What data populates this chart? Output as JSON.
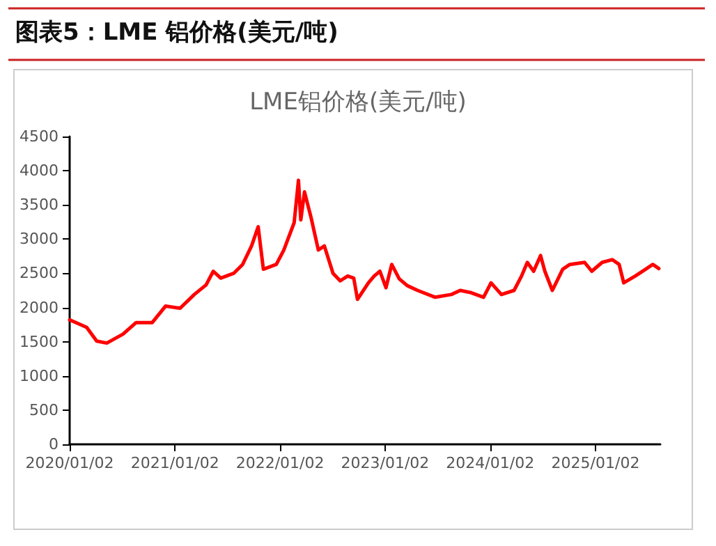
{
  "chart_data": {
    "type": "line",
    "title": "图表5：LME 铝价格(美元/吨)",
    "subtitle": "LME铝价格(美元/吨)",
    "x": [
      "2020-01-02",
      "2020-03-01",
      "2020-04-05",
      "2020-05-10",
      "2020-07-05",
      "2020-08-20",
      "2020-10-15",
      "2020-11-30",
      "2021-01-20",
      "2021-03-10",
      "2021-04-20",
      "2021-05-15",
      "2021-06-10",
      "2021-07-25",
      "2021-08-25",
      "2021-09-25",
      "2021-10-18",
      "2021-11-05",
      "2021-12-20",
      "2022-01-15",
      "2022-02-20",
      "2022-03-07",
      "2022-03-15",
      "2022-03-28",
      "2022-04-20",
      "2022-05-15",
      "2022-06-05",
      "2022-07-05",
      "2022-07-30",
      "2022-08-25",
      "2022-09-15",
      "2022-09-28",
      "2022-10-20",
      "2022-11-05",
      "2022-11-25",
      "2022-12-15",
      "2023-01-05",
      "2023-01-25",
      "2023-02-20",
      "2023-03-20",
      "2023-04-25",
      "2023-06-25",
      "2023-08-20",
      "2023-09-20",
      "2023-10-25",
      "2023-12-10",
      "2024-01-05",
      "2024-02-10",
      "2024-03-25",
      "2024-04-20",
      "2024-05-10",
      "2024-06-01",
      "2024-06-25",
      "2024-07-10",
      "2024-08-05",
      "2024-09-10",
      "2024-10-05",
      "2024-11-25",
      "2024-12-20",
      "2025-01-25",
      "2025-03-01",
      "2025-03-25",
      "2025-04-10",
      "2025-05-20",
      "2025-06-25",
      "2025-07-20",
      "2025-08-10"
    ],
    "series": [
      {
        "color": "#ff0000",
        "values": [
          1820,
          1710,
          1510,
          1480,
          1610,
          1780,
          1780,
          2020,
          1990,
          2190,
          2330,
          2530,
          2430,
          2500,
          2630,
          2900,
          3180,
          2560,
          2630,
          2840,
          3240,
          3860,
          3280,
          3690,
          3310,
          2840,
          2900,
          2500,
          2390,
          2460,
          2430,
          2120,
          2260,
          2360,
          2460,
          2530,
          2290,
          2630,
          2420,
          2320,
          2250,
          2150,
          2190,
          2250,
          2220,
          2150,
          2360,
          2190,
          2250,
          2460,
          2660,
          2530,
          2760,
          2530,
          2250,
          2560,
          2630,
          2660,
          2530,
          2660,
          2700,
          2630,
          2360,
          2460,
          2560,
          2630,
          2570
        ]
      }
    ],
    "xlim": [
      "2020-01-02",
      "2025-08-15"
    ],
    "xticks": [
      {
        "value": "2020-01-02",
        "label": "2020/01/02"
      },
      {
        "value": "2021-01-02",
        "label": "2021/01/02"
      },
      {
        "value": "2022-01-02",
        "label": "2022/01/02"
      },
      {
        "value": "2023-01-02",
        "label": "2023/01/02"
      },
      {
        "value": "2024-01-02",
        "label": "2024/01/02"
      },
      {
        "value": "2025-01-02",
        "label": "2025/01/02"
      }
    ],
    "ylim": [
      0,
      4500
    ],
    "yticks": [
      0,
      500,
      1000,
      1500,
      2000,
      2500,
      3000,
      3500,
      4000,
      4500
    ],
    "grid": false,
    "marker": "none",
    "line_style": "solid"
  }
}
